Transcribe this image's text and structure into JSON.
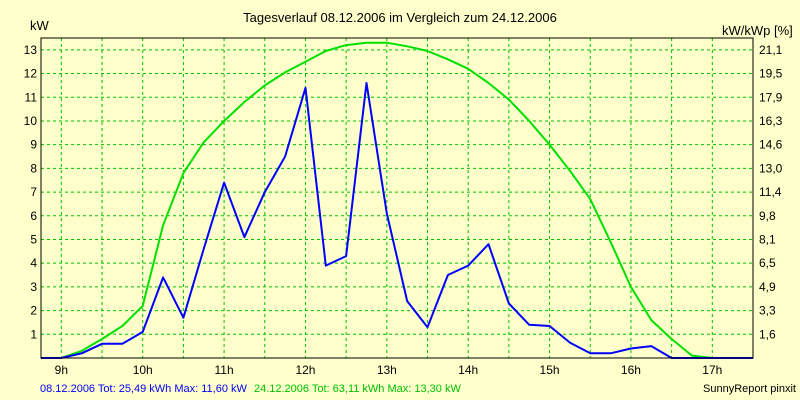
{
  "chart_data": {
    "type": "line",
    "title": "Tagesverlauf 08.12.2006 im Vergleich zum 24.12.2006",
    "ylabel_left": "kW",
    "ylabel_right": "kW/kWp [%]",
    "x_ticks": [
      "9h",
      "10h",
      "11h",
      "12h",
      "13h",
      "14h",
      "15h",
      "16h",
      "17h"
    ],
    "y_ticks_left": [
      "1",
      "2",
      "3",
      "4",
      "5",
      "6",
      "7",
      "8",
      "9",
      "10",
      "11",
      "12",
      "13"
    ],
    "y_ticks_right": [
      "1,6",
      "3,3",
      "4,9",
      "6,5",
      "8,1",
      "9,8",
      "11,4",
      "13,0",
      "14,6",
      "16,3",
      "17,9",
      "19,5",
      "21,1"
    ],
    "xlim": [
      8.75,
      17.5
    ],
    "ylim": [
      0,
      13.5
    ],
    "grid": true,
    "series": [
      {
        "name": "08.12.2006",
        "color": "#0000ff",
        "x": [
          8.75,
          9.0,
          9.25,
          9.5,
          9.75,
          10.0,
          10.25,
          10.5,
          10.75,
          11.0,
          11.25,
          11.5,
          11.75,
          12.0,
          12.25,
          12.5,
          12.75,
          13.0,
          13.25,
          13.5,
          13.75,
          14.0,
          14.25,
          14.5,
          14.75,
          15.0,
          15.25,
          15.5,
          15.75,
          16.0,
          16.25,
          16.5,
          16.75,
          17.0,
          17.25,
          17.5
        ],
        "values": [
          0,
          0,
          0.2,
          0.6,
          0.6,
          1.1,
          3.4,
          1.7,
          4.6,
          7.4,
          5.1,
          7.0,
          8.5,
          11.4,
          3.9,
          4.3,
          11.6,
          6.1,
          2.4,
          1.3,
          3.5,
          3.9,
          4.8,
          2.3,
          1.4,
          1.35,
          0.65,
          0.2,
          0.2,
          0.4,
          0.5,
          0,
          0,
          0,
          0,
          0
        ]
      },
      {
        "name": "24.12.2006",
        "color": "#00e000",
        "x": [
          8.75,
          9.0,
          9.25,
          9.5,
          9.75,
          10.0,
          10.25,
          10.5,
          10.75,
          11.0,
          11.25,
          11.5,
          11.75,
          12.0,
          12.25,
          12.5,
          12.75,
          13.0,
          13.25,
          13.5,
          13.75,
          14.0,
          14.25,
          14.5,
          14.75,
          15.0,
          15.25,
          15.5,
          15.75,
          16.0,
          16.25,
          16.5,
          16.75,
          17.0,
          17.25,
          17.5
        ],
        "values": [
          0,
          0,
          0.3,
          0.8,
          1.35,
          2.2,
          5.6,
          7.8,
          9.1,
          10.0,
          10.8,
          11.5,
          12.05,
          12.5,
          12.95,
          13.2,
          13.3,
          13.3,
          13.15,
          12.95,
          12.6,
          12.2,
          11.6,
          10.9,
          10.0,
          9.0,
          7.9,
          6.7,
          4.9,
          3.0,
          1.6,
          0.8,
          0.1,
          0,
          0,
          0
        ]
      }
    ]
  },
  "footer": {
    "series1_text": "08.12.2006 Tot: 25,49 kWh Max: 11,60 kW",
    "series2_text": "24.12.2006 Tot: 63,11 kWh Max: 13,30 kW",
    "brand": "SunnyReport pinxit"
  }
}
